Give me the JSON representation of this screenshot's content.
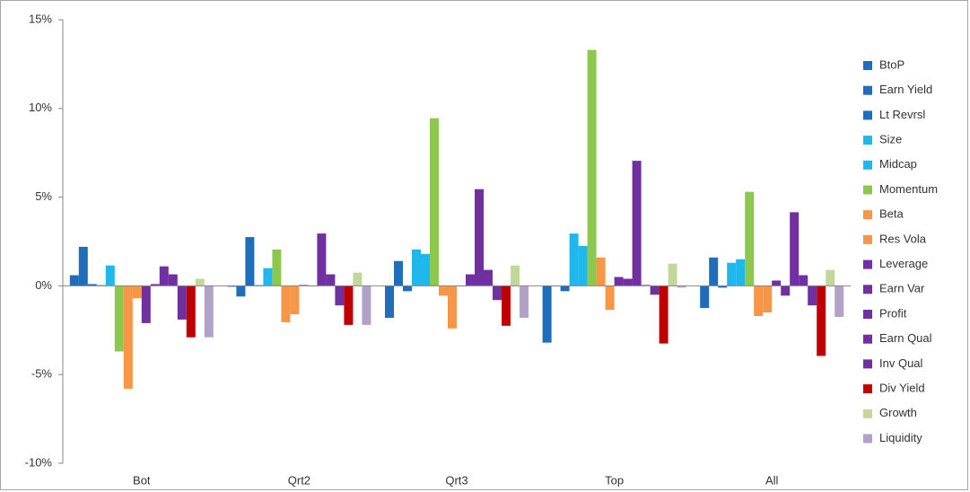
{
  "chart_data": {
    "type": "bar",
    "categories": [
      "Bot",
      "Qrt2",
      "Qrt3",
      "Top",
      "All"
    ],
    "ylim": [
      -10,
      15
    ],
    "yticks": [
      {
        "value": -10,
        "label": "-10%"
      },
      {
        "value": -5,
        "label": "-5%"
      },
      {
        "value": 0,
        "label": "0%"
      },
      {
        "value": 5,
        "label": "5%"
      },
      {
        "value": 10,
        "label": "10%"
      },
      {
        "value": 15,
        "label": "15%"
      }
    ],
    "legend": "right",
    "series": [
      {
        "name": "BtoP",
        "color": "#1f6dbb",
        "values": [
          0.6,
          -0.05,
          -1.8,
          -3.2,
          -1.25
        ]
      },
      {
        "name": "Earn Yield",
        "color": "#1f6dbb",
        "values": [
          2.2,
          -0.6,
          1.4,
          0,
          1.6
        ]
      },
      {
        "name": "Lt Revrsl",
        "color": "#1f6dbb",
        "values": [
          0.1,
          2.75,
          -0.3,
          -0.3,
          -0.1
        ]
      },
      {
        "name": "Size",
        "color": "#1fb8ec",
        "values": [
          0.05,
          0.05,
          2.05,
          2.95,
          1.3
        ]
      },
      {
        "name": "Midcap",
        "color": "#1fb8ec",
        "values": [
          1.15,
          1.0,
          1.8,
          2.25,
          1.5
        ]
      },
      {
        "name": "Momentum",
        "color": "#8dc84e",
        "values": [
          -3.7,
          2.05,
          9.45,
          13.3,
          5.3
        ]
      },
      {
        "name": "Beta",
        "color": "#f79646",
        "values": [
          -5.8,
          -2.05,
          -0.55,
          1.6,
          -1.7
        ]
      },
      {
        "name": "Res Vola",
        "color": "#f79646",
        "values": [
          -0.7,
          -1.6,
          -2.4,
          -1.35,
          -1.5
        ]
      },
      {
        "name": "Leverage",
        "color": "#7030a0",
        "values": [
          -2.1,
          0.05,
          0,
          0.5,
          0.3
        ]
      },
      {
        "name": "Earn Var",
        "color": "#7030a0",
        "values": [
          0.1,
          0,
          0.65,
          0.4,
          -0.55
        ]
      },
      {
        "name": "Profit",
        "color": "#7030a0",
        "values": [
          1.1,
          2.95,
          5.45,
          7.05,
          4.15
        ]
      },
      {
        "name": "Earn Qual",
        "color": "#7030a0",
        "values": [
          0.65,
          0.65,
          0.9,
          0.05,
          0.6
        ]
      },
      {
        "name": "Inv Qual",
        "color": "#7030a0",
        "values": [
          -1.9,
          -1.1,
          -0.8,
          -0.5,
          -1.1
        ]
      },
      {
        "name": "Div Yield",
        "color": "#c00000",
        "values": [
          -2.9,
          -2.2,
          -2.25,
          -3.25,
          -3.95
        ]
      },
      {
        "name": "Growth",
        "color": "#c4d79b",
        "values": [
          0.4,
          0.75,
          1.15,
          1.25,
          0.9
        ]
      },
      {
        "name": "Liquidity",
        "color": "#b3a2c7",
        "values": [
          -2.9,
          -2.2,
          -1.8,
          -0.1,
          -1.75
        ]
      }
    ]
  }
}
